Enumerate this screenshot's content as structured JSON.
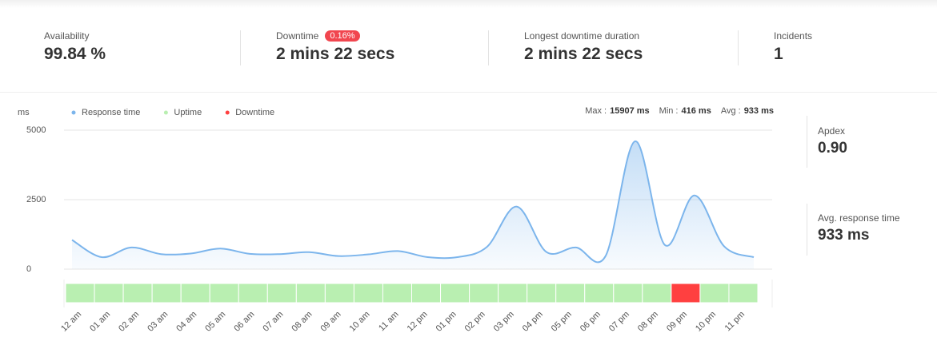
{
  "summary": [
    {
      "label": "Availability",
      "value": "99.84 %"
    },
    {
      "label": "Downtime",
      "badge": "0.16%",
      "value": "2 mins 22 secs"
    },
    {
      "label": "Longest downtime duration",
      "value": "2 mins 22 secs"
    },
    {
      "label": "Incidents",
      "value": "1"
    }
  ],
  "side": [
    {
      "label": "Apdex",
      "value": "0.90"
    },
    {
      "label": "Avg. response time",
      "value": "933 ms"
    }
  ],
  "chart_data": {
    "type": "line",
    "y_label": "ms",
    "stats": [
      {
        "label": "Max :",
        "value": "15907 ms"
      },
      {
        "label": "Min :",
        "value": "416 ms"
      },
      {
        "label": "Avg :",
        "value": "933 ms"
      }
    ],
    "categories": [
      "12 am",
      "01 am",
      "02 am",
      "03 am",
      "04 am",
      "05 am",
      "06 am",
      "07 am",
      "08 am",
      "09 am",
      "10 am",
      "11 am",
      "12 pm",
      "01 pm",
      "02 pm",
      "03 pm",
      "04 pm",
      "05 pm",
      "06 pm",
      "07 pm",
      "08 pm",
      "09 pm",
      "10 pm",
      "11 pm"
    ],
    "series": [
      {
        "name": "Response time",
        "color": "#7cb5ec",
        "values": [
          1050,
          430,
          780,
          540,
          560,
          740,
          550,
          540,
          610,
          470,
          530,
          650,
          430,
          430,
          800,
          2250,
          620,
          780,
          470,
          4600,
          870,
          2650,
          820,
          430
        ]
      },
      {
        "name": "Uptime",
        "color": "#b9efb1"
      },
      {
        "name": "Downtime",
        "color": "#ff4040"
      }
    ],
    "status_colors": [
      "#b9efb1",
      "#b9efb1",
      "#b9efb1",
      "#b9efb1",
      "#b9efb1",
      "#b9efb1",
      "#b9efb1",
      "#b9efb1",
      "#b9efb1",
      "#b9efb1",
      "#b9efb1",
      "#b9efb1",
      "#b9efb1",
      "#b9efb1",
      "#b9efb1",
      "#b9efb1",
      "#b9efb1",
      "#b9efb1",
      "#b9efb1",
      "#b9efb1",
      "#b9efb1",
      "#ff4040",
      "#b9efb1",
      "#b9efb1"
    ],
    "ylim": [
      0,
      5000
    ],
    "yticks": [
      0,
      2500,
      5000
    ],
    "grid": true
  }
}
